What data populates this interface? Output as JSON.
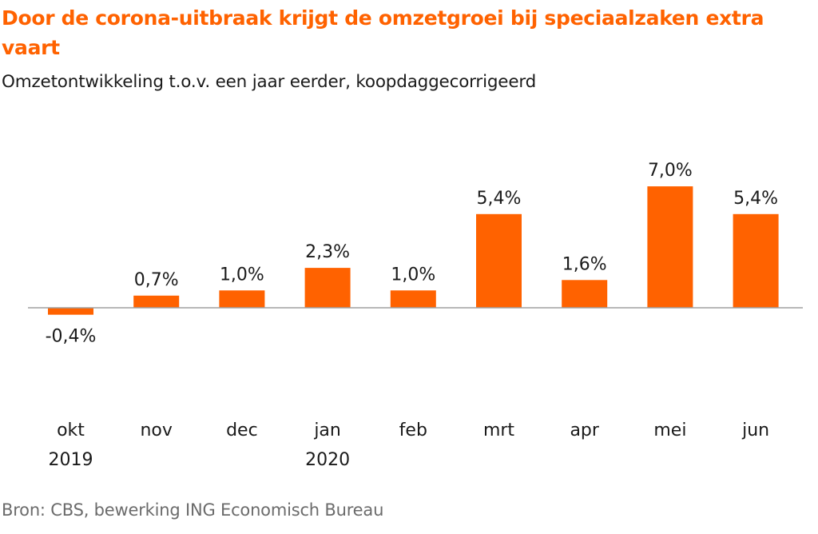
{
  "title": "Door de corona-uitbraak krijgt de omzetgroei bij speciaalzaken extra vaart",
  "subtitle": "Omzetontwikkeling t.o.v. een jaar eerder, koopdaggecorrigeerd",
  "source": "Bron: CBS, bewerking ING Economisch Bureau",
  "colors": {
    "title": "#ff6200",
    "bar": "#ff6200",
    "text": "#1a1a1a",
    "axis": "#a0a0a0",
    "source": "#6b6b6b"
  },
  "chart_data": {
    "type": "bar",
    "categories": [
      "okt",
      "nov",
      "dec",
      "jan",
      "feb",
      "mrt",
      "apr",
      "mei",
      "jun"
    ],
    "category_years": [
      "2019",
      "",
      "",
      "2020",
      "",
      "",
      "",
      "",
      ""
    ],
    "values": [
      -0.4,
      0.7,
      1.0,
      2.3,
      1.0,
      5.4,
      1.6,
      7.0,
      5.4
    ],
    "data_labels": [
      "-0,4%",
      "0,7%",
      "1,0%",
      "2,3%",
      "1,0%",
      "5,4%",
      "1,6%",
      "7,0%",
      "5,4%"
    ],
    "ylim": [
      -1.0,
      7.0
    ],
    "grid": false,
    "legend": "none",
    "xlabel": "",
    "ylabel": ""
  }
}
